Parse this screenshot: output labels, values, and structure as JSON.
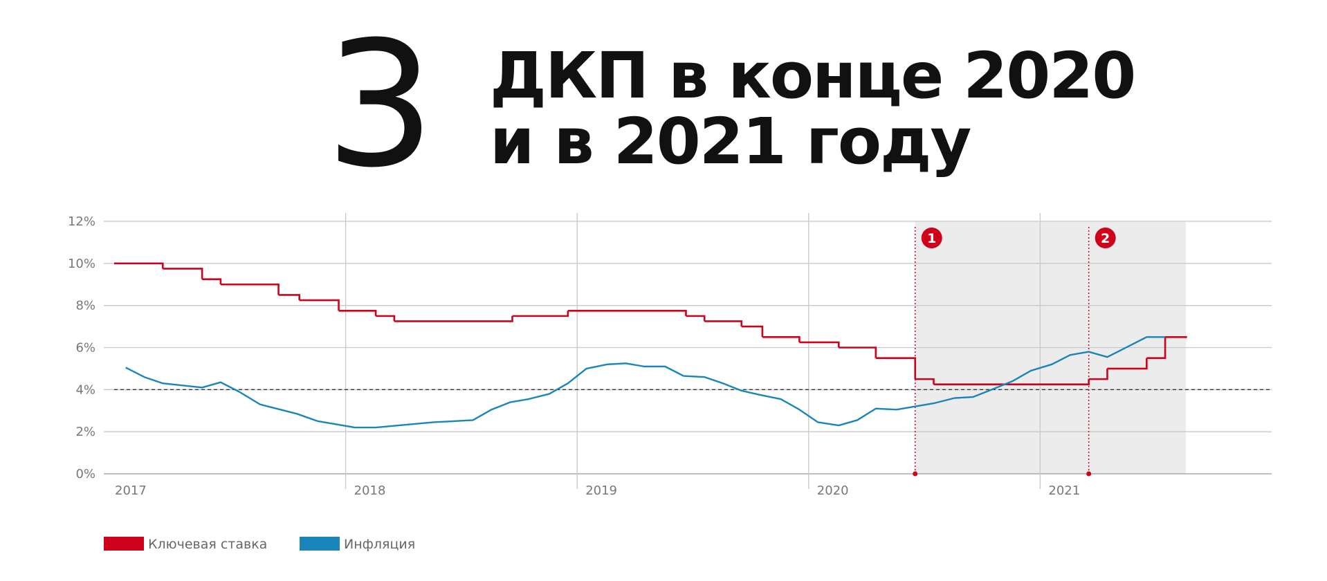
{
  "chart_data": {
    "type": "line",
    "number": "3",
    "title": [
      "ДКП в конце 2020",
      "и в 2021 году"
    ],
    "xlim": [
      2017,
      2022
    ],
    "ylim": [
      0,
      12
    ],
    "xticks": [
      2017,
      2018,
      2019,
      2020,
      2021
    ],
    "yticks": [
      {
        "value": 0,
        "label": "0%"
      },
      {
        "value": 2,
        "label": "2%"
      },
      {
        "value": 4,
        "label": "4%"
      },
      {
        "value": 6,
        "label": "6%"
      },
      {
        "value": 8,
        "label": "8%"
      },
      {
        "value": 10,
        "label": "10%"
      },
      {
        "value": 12,
        "label": "12%"
      }
    ],
    "grid": true,
    "target": 4,
    "shade": [
      2020.46,
      2021.63
    ],
    "markers": [
      {
        "label": "1",
        "x": 2020.46
      },
      {
        "label": "2",
        "x": 2021.21
      }
    ],
    "series": [
      {
        "name": "Ключевая ставка",
        "color": "#d0021b",
        "step": true,
        "x": [
          2017.0,
          2017.21,
          2017.38,
          2017.46,
          2017.71,
          2017.8,
          2017.97,
          2018.13,
          2018.21,
          2018.72,
          2018.96,
          2019.47,
          2019.55,
          2019.71,
          2019.8,
          2019.96,
          2020.13,
          2020.29,
          2020.46,
          2020.54,
          2021.21,
          2021.29,
          2021.46,
          2021.54,
          2021.63
        ],
        "values": [
          10,
          9.75,
          9.25,
          9,
          8.5,
          8.25,
          7.75,
          7.5,
          7.25,
          7.5,
          7.75,
          7.5,
          7.25,
          7,
          6.5,
          6.25,
          6,
          5.5,
          4.5,
          4.25,
          4.5,
          5,
          5.5,
          6.5,
          6.5
        ]
      },
      {
        "name": "Инфляция",
        "color": "#1a85b8",
        "step": false,
        "x": [
          2017.05,
          2017.13,
          2017.21,
          2017.38,
          2017.46,
          2017.54,
          2017.63,
          2017.79,
          2017.88,
          2018.04,
          2018.13,
          2018.38,
          2018.55,
          2018.63,
          2018.71,
          2018.79,
          2018.88,
          2018.96,
          2019.04,
          2019.13,
          2019.21,
          2019.29,
          2019.38,
          2019.46,
          2019.55,
          2019.63,
          2019.71,
          2019.79,
          2019.88,
          2019.96,
          2020.04,
          2020.13,
          2020.21,
          2020.29,
          2020.38,
          2020.54,
          2020.63,
          2020.71,
          2020.79,
          2020.88,
          2020.96,
          2021.05,
          2021.13,
          2021.21,
          2021.29,
          2021.38,
          2021.46,
          2021.54
        ],
        "values": [
          5.05,
          4.6,
          4.3,
          4.1,
          4.35,
          3.9,
          3.3,
          2.85,
          2.5,
          2.2,
          2.2,
          2.45,
          2.55,
          3.05,
          3.4,
          3.55,
          3.8,
          4.3,
          5.0,
          5.2,
          5.25,
          5.1,
          5.1,
          4.65,
          4.6,
          4.3,
          3.95,
          3.75,
          3.55,
          3.05,
          2.45,
          2.3,
          2.55,
          3.1,
          3.05,
          3.35,
          3.6,
          3.65,
          4.0,
          4.4,
          4.9,
          5.2,
          5.65,
          5.8,
          5.55,
          6.05,
          6.5,
          6.5
        ]
      }
    ]
  }
}
